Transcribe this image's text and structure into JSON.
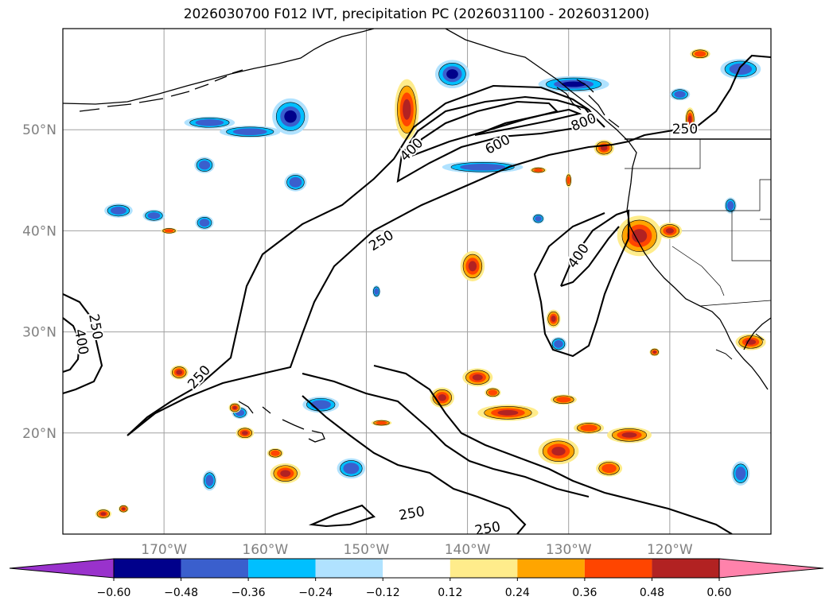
{
  "title": "2026030700 F012 IVT, precipitation PC (2026031100 - 2026031200)",
  "map": {
    "projection": "PlateCarree",
    "lon_range": [
      -180,
      -110
    ],
    "lat_range": [
      10,
      60
    ],
    "gridlines": true,
    "lat_ticks": [
      {
        "value": 50,
        "label": "50°N"
      },
      {
        "value": 40,
        "label": "40°N"
      },
      {
        "value": 30,
        "label": "30°N"
      },
      {
        "value": 20,
        "label": "20°N"
      }
    ],
    "lon_ticks": [
      {
        "value": -170,
        "label": "170°W"
      },
      {
        "value": -160,
        "label": "160°W"
      },
      {
        "value": -150,
        "label": "150°W"
      },
      {
        "value": -140,
        "label": "140°W"
      },
      {
        "value": -130,
        "label": "130°W"
      },
      {
        "value": -120,
        "label": "120°W"
      }
    ],
    "contour_labels": [
      {
        "text": "800",
        "lon": -128.5,
        "lat": 50.7,
        "rot": -22
      },
      {
        "text": "600",
        "lon": -137.0,
        "lat": 48.5,
        "rot": -28
      },
      {
        "text": "400",
        "lon": -145.5,
        "lat": 48.0,
        "rot": -45
      },
      {
        "text": "250",
        "lon": -148.5,
        "lat": 39.0,
        "rot": -32
      },
      {
        "text": "400",
        "lon": -129.0,
        "lat": 37.5,
        "rot": -55
      },
      {
        "text": "250",
        "lon": -118.5,
        "lat": 50.0,
        "rot": 0
      },
      {
        "text": "250",
        "lon": -176.8,
        "lat": 30.5,
        "rot": 80
      },
      {
        "text": "400",
        "lon": -178.2,
        "lat": 29.0,
        "rot": 80
      },
      {
        "text": "250",
        "lon": -166.5,
        "lat": 25.5,
        "rot": -48
      },
      {
        "text": "250",
        "lon": -145.5,
        "lat": 12.0,
        "rot": -10
      },
      {
        "text": "250",
        "lon": -138.0,
        "lat": 10.5,
        "rot": -10
      }
    ]
  },
  "colorbar": {
    "colors": [
      "#9932cc",
      "#00008b",
      "#3a5fcd",
      "#00bfff",
      "#b0e2ff",
      "#ffffff",
      "#ffec8b",
      "#ffa500",
      "#ff4500",
      "#b22222",
      "#ff82ab"
    ],
    "ticks": [
      "−0.60",
      "−0.48",
      "−0.36",
      "−0.24",
      "−0.12",
      "0.12",
      "0.24",
      "0.36",
      "0.48",
      "0.60"
    ]
  },
  "precip_negative": [
    {
      "lon": -157.5,
      "lat": 51.3,
      "rx": 1.8,
      "ry": 1.8,
      "lvl": 3
    },
    {
      "lon": -161.5,
      "lat": 49.8,
      "rx": 3.0,
      "ry": 0.6,
      "lvl": 2
    },
    {
      "lon": -165.5,
      "lat": 50.7,
      "rx": 2.5,
      "ry": 0.6,
      "lvl": 2
    },
    {
      "lon": -141.5,
      "lat": 55.5,
      "rx": 1.7,
      "ry": 1.4,
      "lvl": 3
    },
    {
      "lon": -129.5,
      "lat": 54.5,
      "rx": 3.5,
      "ry": 0.8,
      "lvl": 3
    },
    {
      "lon": -119.0,
      "lat": 53.5,
      "rx": 1.0,
      "ry": 0.6,
      "lvl": 2
    },
    {
      "lon": -113.0,
      "lat": 56.0,
      "rx": 2.0,
      "ry": 1.0,
      "lvl": 2
    },
    {
      "lon": -138.5,
      "lat": 46.3,
      "rx": 4.0,
      "ry": 0.6,
      "lvl": 2
    },
    {
      "lon": -166.0,
      "lat": 46.5,
      "rx": 1.0,
      "ry": 0.8,
      "lvl": 2
    },
    {
      "lon": -157.0,
      "lat": 44.8,
      "rx": 1.1,
      "ry": 0.9,
      "lvl": 2
    },
    {
      "lon": -174.5,
      "lat": 42.0,
      "rx": 1.4,
      "ry": 0.7,
      "lvl": 2
    },
    {
      "lon": -171.0,
      "lat": 41.5,
      "rx": 1.1,
      "ry": 0.6,
      "lvl": 2
    },
    {
      "lon": -166.0,
      "lat": 40.8,
      "rx": 0.9,
      "ry": 0.7,
      "lvl": 2
    },
    {
      "lon": -133.0,
      "lat": 41.2,
      "rx": 0.6,
      "ry": 0.5,
      "lvl": 2
    },
    {
      "lon": -131.0,
      "lat": 28.8,
      "rx": 0.8,
      "ry": 0.7,
      "lvl": 2
    },
    {
      "lon": -154.5,
      "lat": 22.8,
      "rx": 1.8,
      "ry": 0.8,
      "lvl": 2
    },
    {
      "lon": -162.5,
      "lat": 22.0,
      "rx": 0.8,
      "ry": 0.6,
      "lvl": 2
    },
    {
      "lon": -151.5,
      "lat": 16.5,
      "rx": 1.4,
      "ry": 1.0,
      "lvl": 2
    },
    {
      "lon": -165.5,
      "lat": 15.3,
      "rx": 0.7,
      "ry": 1.0,
      "lvl": 2
    },
    {
      "lon": -113.0,
      "lat": 16.0,
      "rx": 0.9,
      "ry": 1.2,
      "lvl": 2
    },
    {
      "lon": -149.0,
      "lat": 34.0,
      "rx": 0.4,
      "ry": 0.6,
      "lvl": 2
    },
    {
      "lon": -114.0,
      "lat": 42.5,
      "rx": 0.6,
      "ry": 0.8,
      "lvl": 2
    }
  ],
  "precip_positive": [
    {
      "lon": -146.0,
      "lat": 52.0,
      "rx": 1.2,
      "ry": 3.0,
      "lvl": 3
    },
    {
      "lon": -139.5,
      "lat": 36.5,
      "rx": 1.2,
      "ry": 1.5,
      "lvl": 3
    },
    {
      "lon": -123.0,
      "lat": 39.5,
      "rx": 2.2,
      "ry": 2.0,
      "lvl": 3
    },
    {
      "lon": -120.0,
      "lat": 40.0,
      "rx": 1.2,
      "ry": 0.8,
      "lvl": 3
    },
    {
      "lon": -112.0,
      "lat": 29.0,
      "rx": 1.5,
      "ry": 0.8,
      "lvl": 3
    },
    {
      "lon": -126.5,
      "lat": 48.2,
      "rx": 1.0,
      "ry": 0.8,
      "lvl": 3
    },
    {
      "lon": -139.0,
      "lat": 25.5,
      "rx": 1.5,
      "ry": 0.9,
      "lvl": 3
    },
    {
      "lon": -142.5,
      "lat": 23.5,
      "rx": 1.2,
      "ry": 1.0,
      "lvl": 3
    },
    {
      "lon": -136.0,
      "lat": 22.0,
      "rx": 3.0,
      "ry": 0.8,
      "lvl": 3
    },
    {
      "lon": -130.5,
      "lat": 23.3,
      "rx": 1.3,
      "ry": 0.5,
      "lvl": 2
    },
    {
      "lon": -128.0,
      "lat": 20.5,
      "rx": 1.5,
      "ry": 0.6,
      "lvl": 2
    },
    {
      "lon": -131.0,
      "lat": 18.2,
      "rx": 2.0,
      "ry": 1.3,
      "lvl": 3
    },
    {
      "lon": -124.0,
      "lat": 19.8,
      "rx": 2.2,
      "ry": 0.8,
      "lvl": 3
    },
    {
      "lon": -126.0,
      "lat": 16.5,
      "rx": 1.3,
      "ry": 0.8,
      "lvl": 2
    },
    {
      "lon": -158.0,
      "lat": 16.0,
      "rx": 1.5,
      "ry": 1.0,
      "lvl": 3
    },
    {
      "lon": -159.0,
      "lat": 18.0,
      "rx": 0.8,
      "ry": 0.5,
      "lvl": 2
    },
    {
      "lon": -163.0,
      "lat": 22.5,
      "rx": 0.6,
      "ry": 0.5,
      "lvl": 3
    },
    {
      "lon": -162.0,
      "lat": 20.0,
      "rx": 0.9,
      "ry": 0.6,
      "lvl": 3
    },
    {
      "lon": -168.5,
      "lat": 26.0,
      "rx": 0.9,
      "ry": 0.7,
      "lvl": 3
    },
    {
      "lon": -131.5,
      "lat": 31.3,
      "rx": 0.7,
      "ry": 0.9,
      "lvl": 3
    },
    {
      "lon": -118.0,
      "lat": 51.0,
      "rx": 0.5,
      "ry": 1.2,
      "lvl": 3
    },
    {
      "lon": -176.0,
      "lat": 12.0,
      "rx": 0.8,
      "ry": 0.5,
      "lvl": 3
    },
    {
      "lon": -174.0,
      "lat": 12.5,
      "rx": 0.5,
      "ry": 0.4,
      "lvl": 3
    },
    {
      "lon": -117.0,
      "lat": 57.5,
      "rx": 1.0,
      "ry": 0.5,
      "lvl": 2
    },
    {
      "lon": -137.5,
      "lat": 24.0,
      "rx": 0.8,
      "ry": 0.5,
      "lvl": 2
    },
    {
      "lon": -121.5,
      "lat": 28.0,
      "rx": 0.5,
      "ry": 0.4,
      "lvl": 3
    },
    {
      "lon": -169.5,
      "lat": 40.0,
      "rx": 0.8,
      "ry": 0.3,
      "lvl": 2
    },
    {
      "lon": -148.5,
      "lat": 21.0,
      "rx": 1.0,
      "ry": 0.3,
      "lvl": 2
    },
    {
      "lon": -133.0,
      "lat": 46.0,
      "rx": 0.8,
      "ry": 0.3,
      "lvl": 2
    },
    {
      "lon": -130.0,
      "lat": 45.0,
      "rx": 0.3,
      "ry": 0.7,
      "lvl": 2
    }
  ]
}
